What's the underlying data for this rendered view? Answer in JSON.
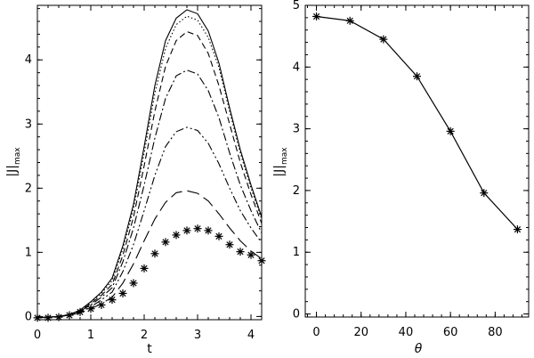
{
  "chart_data": [
    {
      "type": "line",
      "xlabel": "t",
      "ylabel": "|J|",
      "ylabel_subscript": "max",
      "xlim": [
        0,
        4.2
      ],
      "ylim": [
        -0.05,
        4.85
      ],
      "xticks": [
        "0",
        "1",
        "2",
        "3",
        "4"
      ],
      "yticks": [
        "0",
        "1",
        "2",
        "3",
        "4"
      ],
      "series": [
        {
          "dash": "solid",
          "t": [
            0,
            0.2,
            0.4,
            0.6,
            0.8,
            1.0,
            1.2,
            1.4,
            1.6,
            1.8,
            2.0,
            2.2,
            2.4,
            2.6,
            2.8,
            3.0,
            3.2,
            3.4,
            3.6,
            3.8,
            4.0,
            4.2
          ],
          "values": [
            -0.02,
            -0.01,
            0.0,
            0.03,
            0.1,
            0.23,
            0.38,
            0.6,
            1.1,
            1.75,
            2.65,
            3.6,
            4.3,
            4.65,
            4.78,
            4.72,
            4.45,
            3.95,
            3.25,
            2.6,
            2.05,
            1.55
          ]
        },
        {
          "dash": "dotted",
          "t": [
            0,
            0.2,
            0.4,
            0.6,
            0.8,
            1.0,
            1.2,
            1.4,
            1.6,
            1.8,
            2.0,
            2.2,
            2.4,
            2.6,
            2.8,
            3.0,
            3.2,
            3.4,
            3.6,
            3.8,
            4.0,
            4.2
          ],
          "values": [
            -0.02,
            -0.01,
            0.0,
            0.03,
            0.1,
            0.22,
            0.36,
            0.56,
            1.05,
            1.68,
            2.55,
            3.48,
            4.18,
            4.55,
            4.68,
            4.62,
            4.35,
            3.88,
            3.2,
            2.55,
            2.0,
            1.52
          ]
        },
        {
          "dash": "dashed",
          "t": [
            0,
            0.2,
            0.4,
            0.6,
            0.8,
            1.0,
            1.2,
            1.4,
            1.6,
            1.8,
            2.0,
            2.2,
            2.4,
            2.6,
            2.8,
            3.0,
            3.2,
            3.4,
            3.6,
            3.8,
            4.0,
            4.2
          ],
          "values": [
            -0.02,
            -0.01,
            0.0,
            0.03,
            0.09,
            0.2,
            0.33,
            0.5,
            0.95,
            1.55,
            2.35,
            3.2,
            3.9,
            4.3,
            4.44,
            4.38,
            4.1,
            3.6,
            3.0,
            2.4,
            1.9,
            1.45
          ]
        },
        {
          "dash": "dash-dot",
          "t": [
            0,
            0.2,
            0.4,
            0.6,
            0.8,
            1.0,
            1.2,
            1.4,
            1.6,
            1.8,
            2.0,
            2.2,
            2.4,
            2.6,
            2.8,
            3.0,
            3.2,
            3.4,
            3.6,
            3.8,
            4.0,
            4.2
          ],
          "values": [
            -0.02,
            -0.01,
            0.0,
            0.03,
            0.08,
            0.18,
            0.3,
            0.45,
            0.85,
            1.38,
            2.05,
            2.78,
            3.4,
            3.75,
            3.84,
            3.78,
            3.52,
            3.1,
            2.55,
            2.05,
            1.65,
            1.3
          ]
        },
        {
          "dash": "dash-dot-dot",
          "t": [
            0,
            0.2,
            0.4,
            0.6,
            0.8,
            1.0,
            1.2,
            1.4,
            1.6,
            1.8,
            2.0,
            2.2,
            2.4,
            2.6,
            2.8,
            3.0,
            3.2,
            3.4,
            3.6,
            3.8,
            4.0,
            4.2
          ],
          "values": [
            -0.02,
            -0.01,
            0.0,
            0.02,
            0.07,
            0.15,
            0.26,
            0.38,
            0.7,
            1.12,
            1.65,
            2.2,
            2.65,
            2.88,
            2.95,
            2.9,
            2.7,
            2.38,
            2.0,
            1.65,
            1.38,
            1.15
          ]
        },
        {
          "dash": "long-dash",
          "t": [
            0,
            0.2,
            0.4,
            0.6,
            0.8,
            1.0,
            1.2,
            1.4,
            1.6,
            1.8,
            2.0,
            2.2,
            2.4,
            2.6,
            2.8,
            3.0,
            3.2,
            3.4,
            3.6,
            3.8,
            4.0,
            4.2
          ],
          "values": [
            -0.02,
            -0.01,
            0.0,
            0.02,
            0.06,
            0.12,
            0.2,
            0.3,
            0.52,
            0.82,
            1.18,
            1.52,
            1.78,
            1.93,
            1.96,
            1.92,
            1.8,
            1.6,
            1.38,
            1.18,
            1.02,
            0.9
          ]
        },
        {
          "dash": "asterisk",
          "t": [
            0,
            0.2,
            0.4,
            0.6,
            0.8,
            1.0,
            1.2,
            1.4,
            1.6,
            1.8,
            2.0,
            2.2,
            2.4,
            2.6,
            2.8,
            3.0,
            3.2,
            3.4,
            3.6,
            3.8,
            4.0,
            4.2
          ],
          "values": [
            -0.02,
            -0.02,
            -0.01,
            0.02,
            0.07,
            0.12,
            0.18,
            0.26,
            0.36,
            0.52,
            0.75,
            0.98,
            1.16,
            1.27,
            1.34,
            1.37,
            1.34,
            1.25,
            1.12,
            1.01,
            0.96,
            0.87
          ]
        }
      ]
    },
    {
      "type": "line",
      "markers": "asterisk",
      "xlabel": "θ",
      "ylabel": "|J|",
      "ylabel_subscript": "max",
      "xlim": [
        -5,
        95
      ],
      "ylim": [
        -0.05,
        5.0
      ],
      "xticks": [
        "0",
        "20",
        "40",
        "60",
        "80"
      ],
      "yticks": [
        "0",
        "1",
        "2",
        "3",
        "4",
        "5"
      ],
      "x": [
        0,
        15,
        30,
        45,
        60,
        75,
        90
      ],
      "values": [
        4.82,
        4.75,
        4.45,
        3.85,
        2.96,
        1.96,
        1.37
      ]
    }
  ]
}
